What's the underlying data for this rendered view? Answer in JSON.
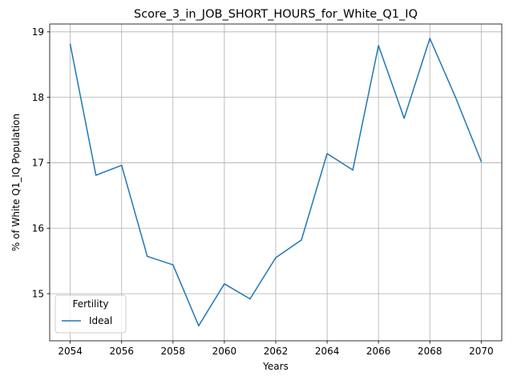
{
  "chart_data": {
    "type": "line",
    "title": "Score_3_in_JOB_SHORT_HOURS_for_White_Q1_IQ",
    "xlabel": "Years",
    "ylabel": "% of White Q1_IQ Population",
    "xlim": [
      2053.2,
      2070.8
    ],
    "ylim": [
      14.28,
      19.12
    ],
    "xticks": [
      2054,
      2056,
      2058,
      2060,
      2062,
      2064,
      2066,
      2068,
      2070
    ],
    "yticks": [
      15,
      16,
      17,
      18,
      19
    ],
    "grid": true,
    "legend": {
      "title": "Fertility",
      "placement": "lower-left"
    },
    "series": [
      {
        "name": "Ideal",
        "color": "#1f77b4",
        "x": [
          2054,
          2055,
          2056,
          2057,
          2058,
          2059,
          2060,
          2061,
          2062,
          2063,
          2064,
          2065,
          2066,
          2067,
          2068,
          2069,
          2070
        ],
        "y": [
          18.81,
          16.81,
          16.96,
          15.57,
          15.44,
          14.51,
          15.15,
          14.92,
          15.55,
          15.82,
          17.14,
          16.89,
          18.79,
          17.68,
          18.9,
          18.0,
          17.02
        ]
      }
    ]
  }
}
